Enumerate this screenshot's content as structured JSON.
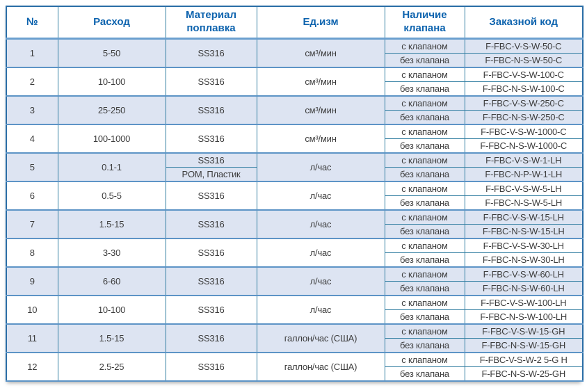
{
  "table": {
    "headers": {
      "num": "№",
      "flow": "Расход",
      "material": "Материал поплавка",
      "unit": "Ед.изм",
      "valve": "Наличие клапана",
      "code": "Заказной код"
    },
    "valve_options": {
      "with": "с клапаном",
      "without": "без клапана"
    },
    "colors": {
      "header_text": "#0d63ae",
      "grid_line": "#2f7ca0",
      "group_separator": "#5d94c6",
      "header_underline": "#6ba0cf",
      "outer_border": "#2a6da6",
      "stripe_bg": "#dde4f2",
      "body_text": "#3d3d3d"
    },
    "rows": [
      {
        "num": "1",
        "flow": "5-50",
        "materials": [
          "SS316"
        ],
        "unit": "см³/мин",
        "code_with": "F-FBC-V-S-W-50-C",
        "code_without": "F-FBC-N-S-W-50-C"
      },
      {
        "num": "2",
        "flow": "10-100",
        "materials": [
          "SS316"
        ],
        "unit": "см³/мин",
        "code_with": "F-FBC-V-S-W-100-C",
        "code_without": "F-FBC-N-S-W-100-C"
      },
      {
        "num": "3",
        "flow": "25-250",
        "materials": [
          "SS316"
        ],
        "unit": "см³/мин",
        "code_with": "F-FBC-V-S-W-250-C",
        "code_without": "F-FBC-N-S-W-250-C"
      },
      {
        "num": "4",
        "flow": "100-1000",
        "materials": [
          "SS316"
        ],
        "unit": "см³/мин",
        "code_with": "F-FBC-V-S-W-1000-C",
        "code_without": "F-FBC-N-S-W-1000-C"
      },
      {
        "num": "5",
        "flow": "0.1-1",
        "materials": [
          "SS316",
          "POM, Пластик"
        ],
        "unit": "л/час",
        "code_with": "F-FBC-V-S-W-1-LH",
        "code_without": "F-FBC-N-P-W-1-LH"
      },
      {
        "num": "6",
        "flow": "0.5-5",
        "materials": [
          "SS316"
        ],
        "unit": "л/час",
        "code_with": "F-FBC-V-S-W-5-LH",
        "code_without": "F-FBC-N-S-W-5-LH"
      },
      {
        "num": "7",
        "flow": "1.5-15",
        "materials": [
          "SS316"
        ],
        "unit": "л/час",
        "code_with": "F-FBC-V-S-W-15-LH",
        "code_without": "F-FBC-N-S-W-15-LH"
      },
      {
        "num": "8",
        "flow": "3-30",
        "materials": [
          "SS316"
        ],
        "unit": "л/час",
        "code_with": "F-FBC-V-S-W-30-LH",
        "code_without": "F-FBC-N-S-W-30-LH"
      },
      {
        "num": "9",
        "flow": "6-60",
        "materials": [
          "SS316"
        ],
        "unit": "л/час",
        "code_with": "F-FBC-V-S-W-60-LH",
        "code_without": "F-FBC-N-S-W-60-LH"
      },
      {
        "num": "10",
        "flow": "10-100",
        "materials": [
          "SS316"
        ],
        "unit": "л/час",
        "code_with": "F-FBC-V-S-W-100-LH",
        "code_without": "F-FBC-N-S-W-100-LH"
      },
      {
        "num": "11",
        "flow": "1.5-15",
        "materials": [
          "SS316"
        ],
        "unit": "галлон/час (США)",
        "code_with": "F-FBC-V-S-W-15-GH",
        "code_without": "F-FBC-N-S-W-15-GH"
      },
      {
        "num": "12",
        "flow": "2.5-25",
        "materials": [
          "SS316"
        ],
        "unit": "галлон/час (США)",
        "code_with": "F-FBC-V-S-W-2 5-G H",
        "code_without": "F-FBC-N-S-W-25-GH"
      }
    ]
  }
}
